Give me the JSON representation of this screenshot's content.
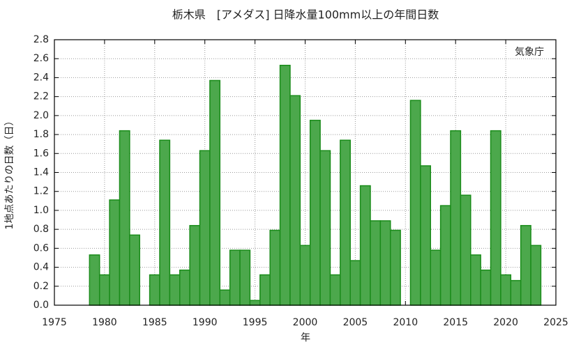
{
  "chart_data": {
    "type": "bar",
    "title": "栃木県　[アメダス] 日降水量100mm以上の年間日数",
    "xlabel": "年",
    "ylabel": "1地点あたりの日数（日）",
    "annotation": "気象庁",
    "x": [
      1979,
      1980,
      1981,
      1982,
      1983,
      1984,
      1985,
      1986,
      1987,
      1988,
      1989,
      1990,
      1991,
      1992,
      1993,
      1994,
      1995,
      1996,
      1997,
      1998,
      1999,
      2000,
      2001,
      2002,
      2003,
      2004,
      2005,
      2006,
      2007,
      2008,
      2009,
      2010,
      2011,
      2012,
      2013,
      2014,
      2015,
      2016,
      2017,
      2018,
      2019,
      2020,
      2021,
      2022,
      2023
    ],
    "values": [
      0.53,
      0.32,
      1.11,
      1.84,
      0.74,
      null,
      0.32,
      1.74,
      0.32,
      0.37,
      0.84,
      1.63,
      2.37,
      0.16,
      0.58,
      0.58,
      0.05,
      0.32,
      0.79,
      2.53,
      2.21,
      0.63,
      1.95,
      1.63,
      0.32,
      1.74,
      0.47,
      1.26,
      0.89,
      0.89,
      0.79,
      null,
      2.16,
      1.47,
      0.58,
      1.05,
      1.84,
      1.16,
      0.53,
      0.37,
      1.84,
      0.32,
      0.26,
      0.84,
      0.63
    ],
    "color": "#4ca84c",
    "edge_color": "#1a8c1a",
    "xlim": [
      1975,
      2025
    ],
    "xticks": [
      1975,
      1980,
      1985,
      1990,
      1995,
      2000,
      2005,
      2010,
      2015,
      2020,
      2025
    ],
    "ylim": [
      0,
      2.8
    ],
    "yticks": [
      {
        "value": 0,
        "label": "0.0"
      },
      0.2,
      0.4,
      0.6,
      0.8,
      {
        "value": 1,
        "label": "1.0"
      },
      1.2,
      1.4,
      1.6,
      1.8,
      {
        "value": 2,
        "label": "2.0"
      },
      2.2,
      2.4,
      2.6,
      2.8
    ],
    "grid": true
  }
}
